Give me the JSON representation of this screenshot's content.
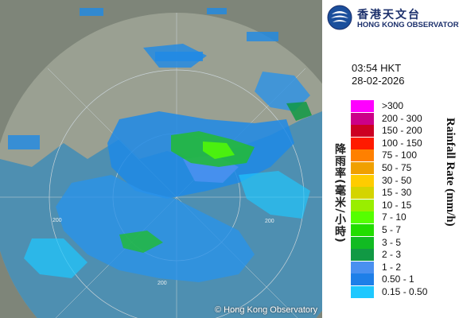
{
  "header": {
    "org_name_cn": "香港天文台",
    "org_name_en": "HONG KONG OBSERVATORY",
    "time": "03:54 HKT",
    "date": "28-02-2026"
  },
  "map": {
    "copyright": "© Hong Kong Observatory",
    "range_labels": [
      "200",
      "200",
      "200"
    ],
    "land_color": "#8d9486",
    "sea_color": "#4f8fb0"
  },
  "legend": {
    "title_cn": "降雨率(毫米/小時)",
    "title_en": "Rainfall Rate (mm/h)",
    "entries": [
      {
        "label": ">300",
        "color": "#ff00ff"
      },
      {
        "label": "200 - 300",
        "color": "#cc0088"
      },
      {
        "label": "150 - 200",
        "color": "#cc0022"
      },
      {
        "label": "100 - 150",
        "color": "#ff1a00"
      },
      {
        "label": "75 - 100",
        "color": "#ff8000"
      },
      {
        "label": "50 - 75",
        "color": "#f0a000"
      },
      {
        "label": "30 - 50",
        "color": "#ffcc00"
      },
      {
        "label": "15 - 30",
        "color": "#d4d400"
      },
      {
        "label": "10 - 15",
        "color": "#99ee00"
      },
      {
        "label": "7 - 10",
        "color": "#55ff00"
      },
      {
        "label": "5 - 7",
        "color": "#22dd00"
      },
      {
        "label": "3 - 5",
        "color": "#11bb22"
      },
      {
        "label": "2 - 3",
        "color": "#119944"
      },
      {
        "label": "1 - 2",
        "color": "#4a90f0"
      },
      {
        "label": "0.50 - 1",
        "color": "#1e7fe8"
      },
      {
        "label": "0.15 - 0.50",
        "color": "#1ec8ff"
      }
    ]
  }
}
